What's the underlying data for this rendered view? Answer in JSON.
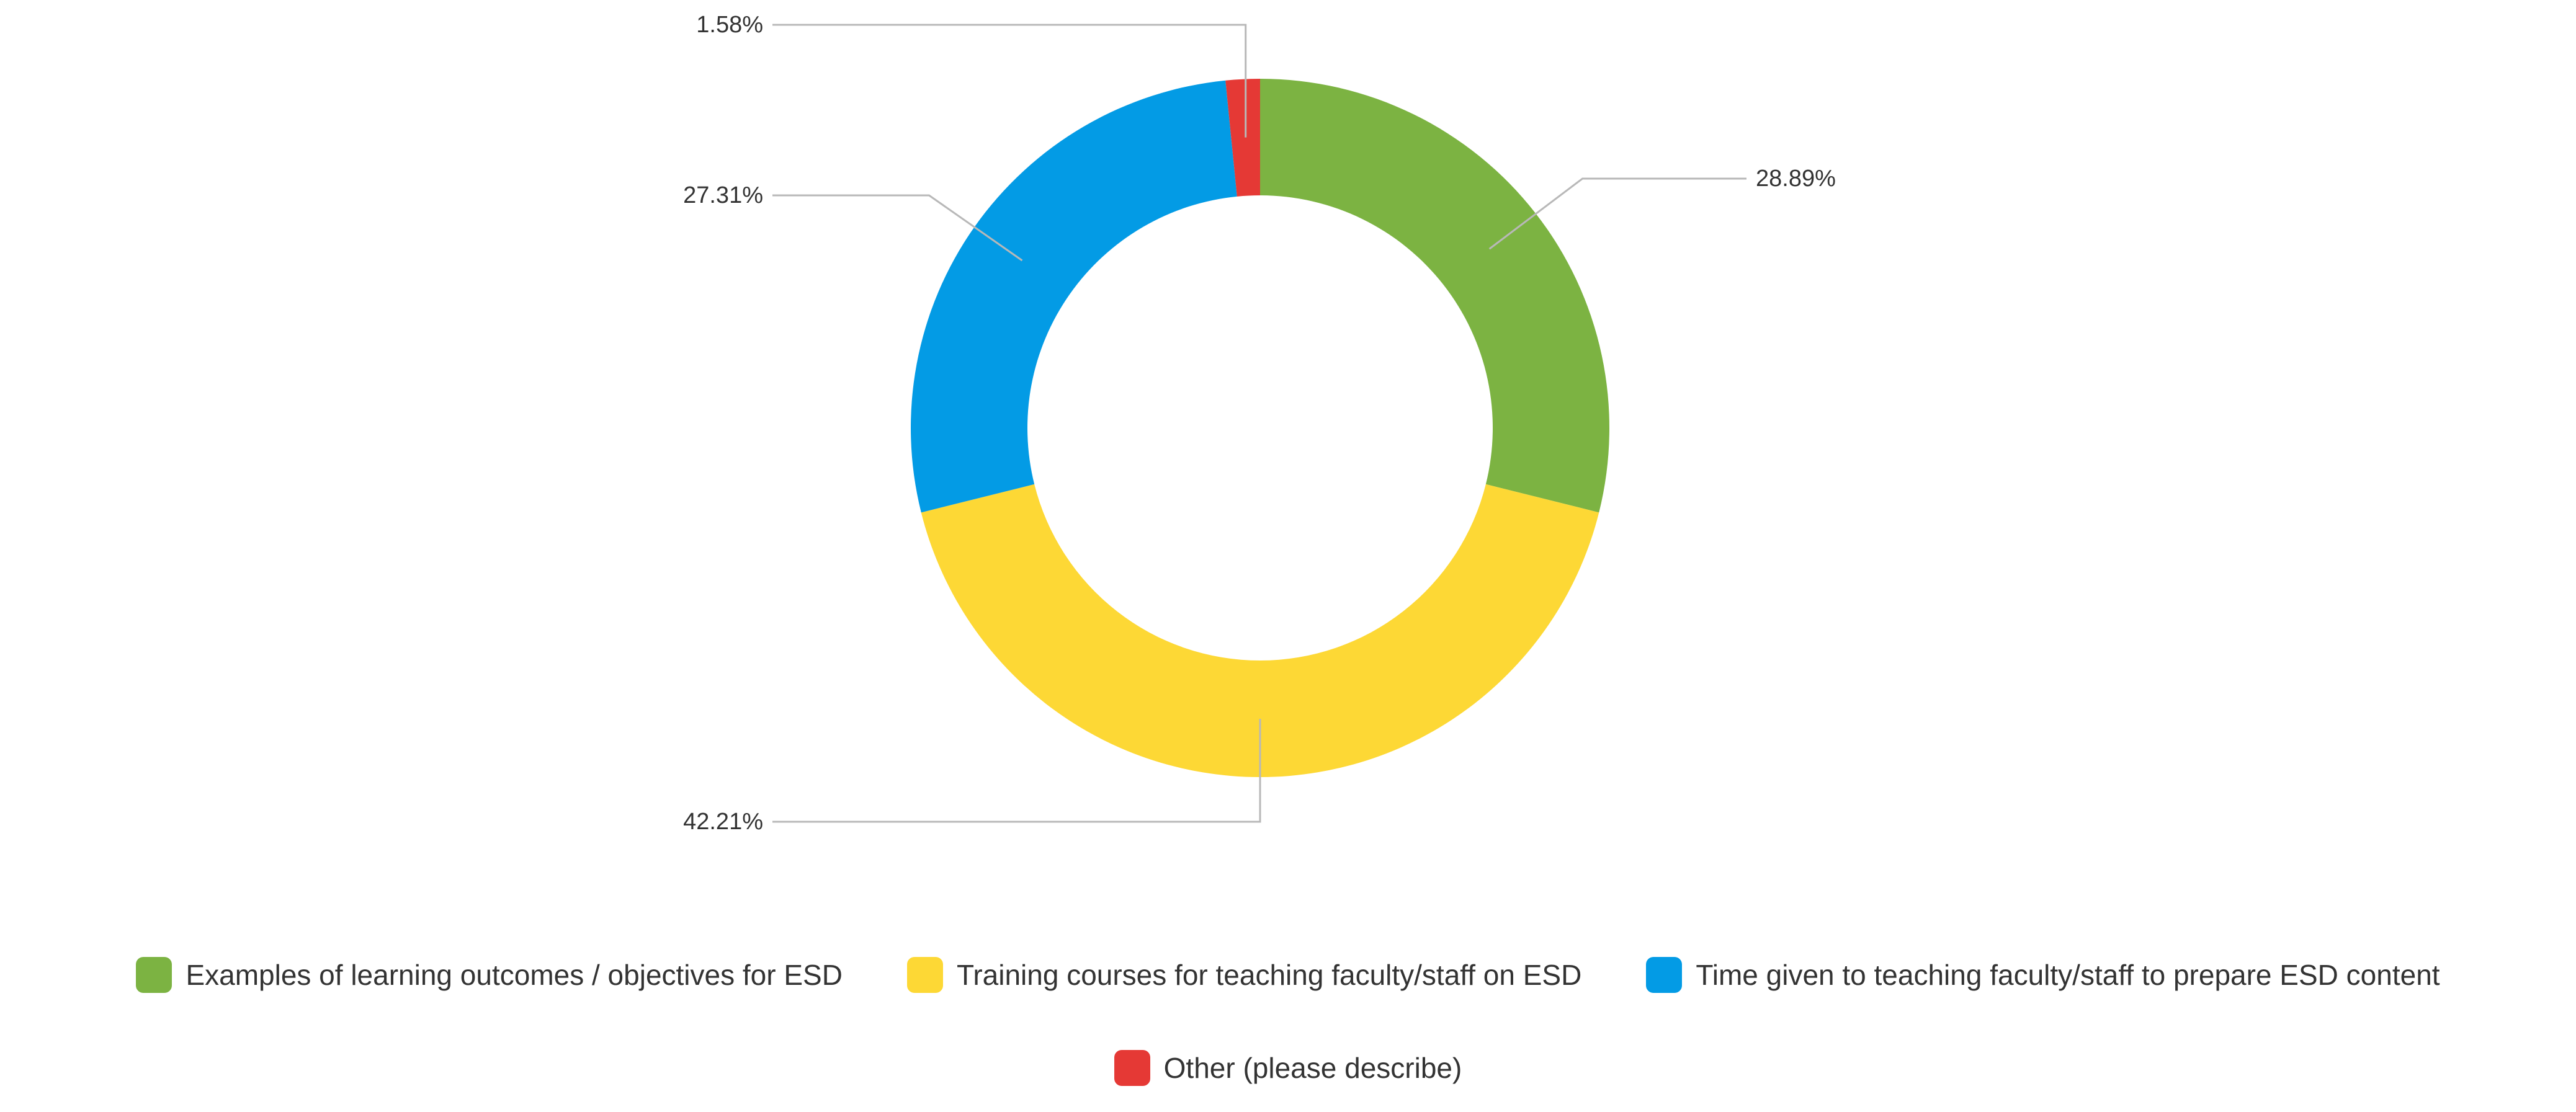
{
  "chart_data": {
    "type": "pie",
    "subtype": "donut",
    "title": "",
    "labels": [
      "Examples of learning outcomes / objectives for ESD",
      "Training courses for teaching faculty/staff on ESD",
      "Time given to teaching faculty/staff to prepare ESD content",
      "Other (please describe)"
    ],
    "values": [
      28.89,
      42.21,
      27.31,
      1.58
    ],
    "value_labels": [
      "28.89%",
      "42.21%",
      "27.31%",
      "1.58%"
    ],
    "colors": [
      "#7cb342",
      "#fdd835",
      "#039be5",
      "#e53935"
    ],
    "legend_position": "bottom"
  }
}
